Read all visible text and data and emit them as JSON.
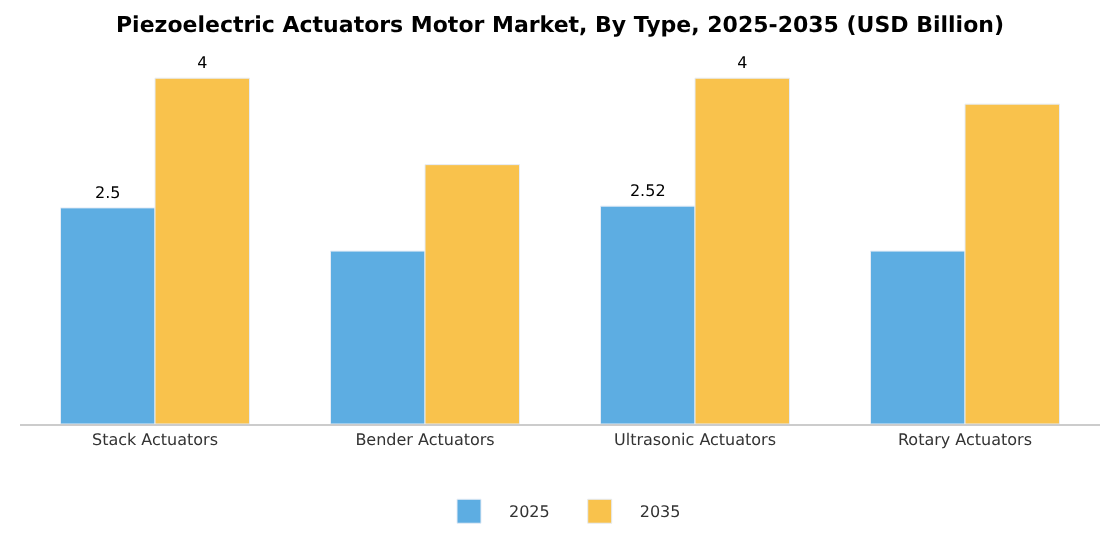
{
  "chart_data": {
    "type": "bar",
    "title": "Piezoelectric Actuators Motor Market, By Type, 2025-2035 (USD Billion)",
    "categories": [
      "Stack Actuators",
      "Bender Actuators",
      "Ultrasonic Actuators",
      "Rotary Actuators"
    ],
    "series": [
      {
        "name": "2025",
        "color": "#5dade2",
        "values": [
          2.5,
          2.0,
          2.52,
          2.0
        ],
        "value_labels": [
          "2.5",
          null,
          "2.52",
          null
        ]
      },
      {
        "name": "2035",
        "color": "#f9c24c",
        "values": [
          4,
          3.0,
          4,
          3.7
        ],
        "value_labels": [
          "4",
          null,
          "4",
          null
        ]
      }
    ],
    "legend": "bottom"
  }
}
